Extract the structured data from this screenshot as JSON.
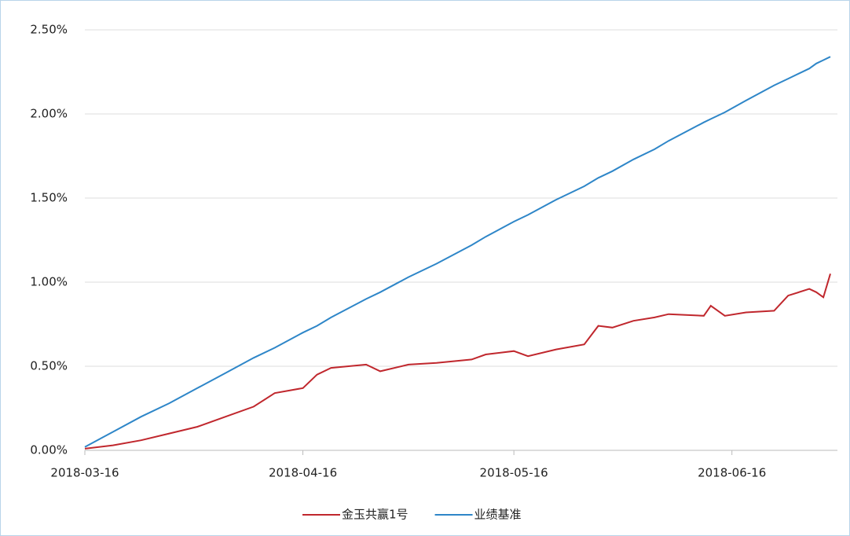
{
  "chart_data": {
    "type": "line",
    "x": [
      "2018-03-16",
      "2018-03-20",
      "2018-03-24",
      "2018-03-28",
      "2018-04-01",
      "2018-04-05",
      "2018-04-09",
      "2018-04-12",
      "2018-04-16",
      "2018-04-18",
      "2018-04-20",
      "2018-04-25",
      "2018-04-27",
      "2018-05-01",
      "2018-05-05",
      "2018-05-10",
      "2018-05-12",
      "2018-05-16",
      "2018-05-18",
      "2018-05-22",
      "2018-05-26",
      "2018-05-28",
      "2018-05-30",
      "2018-06-02",
      "2018-06-05",
      "2018-06-07",
      "2018-06-12",
      "2018-06-13",
      "2018-06-15",
      "2018-06-18",
      "2018-06-22",
      "2018-06-24",
      "2018-06-27",
      "2018-06-28",
      "2018-06-29",
      "2018-06-30"
    ],
    "series": [
      {
        "name": "金玉共赢1号",
        "color": "#c0272d",
        "values": [
          0.01,
          0.03,
          0.06,
          0.1,
          0.14,
          0.2,
          0.26,
          0.34,
          0.37,
          0.45,
          0.49,
          0.51,
          0.47,
          0.51,
          0.52,
          0.54,
          0.57,
          0.59,
          0.56,
          0.6,
          0.63,
          0.74,
          0.73,
          0.77,
          0.79,
          0.81,
          0.8,
          0.86,
          0.8,
          0.82,
          0.83,
          0.92,
          0.96,
          0.94,
          0.91,
          1.05
        ]
      },
      {
        "name": "业绩基准",
        "color": "#2e86c8",
        "values": [
          0.02,
          0.11,
          0.2,
          0.28,
          0.37,
          0.46,
          0.55,
          0.61,
          0.7,
          0.74,
          0.79,
          0.9,
          0.94,
          1.03,
          1.11,
          1.22,
          1.27,
          1.36,
          1.4,
          1.49,
          1.57,
          1.62,
          1.66,
          1.73,
          1.79,
          1.84,
          1.95,
          1.97,
          2.01,
          2.08,
          2.17,
          2.21,
          2.27,
          2.3,
          2.32,
          2.34
        ]
      }
    ],
    "xlim": [
      "2018-03-16",
      "2018-07-01"
    ],
    "xticks": [
      "2018-03-16",
      "2018-04-16",
      "2018-05-16",
      "2018-06-16"
    ],
    "ylim": [
      0,
      2.5
    ],
    "yticks": [
      {
        "value": 0,
        "label": "0.00%"
      },
      {
        "value": 0.5,
        "label": "0.50%"
      },
      {
        "value": 1,
        "label": "1.00%"
      },
      {
        "value": 1.5,
        "label": "1.50%"
      },
      {
        "value": 2,
        "label": "2.00%"
      },
      {
        "value": 2.5,
        "label": "2.50%"
      }
    ],
    "grid": true,
    "legend": "bottom"
  }
}
